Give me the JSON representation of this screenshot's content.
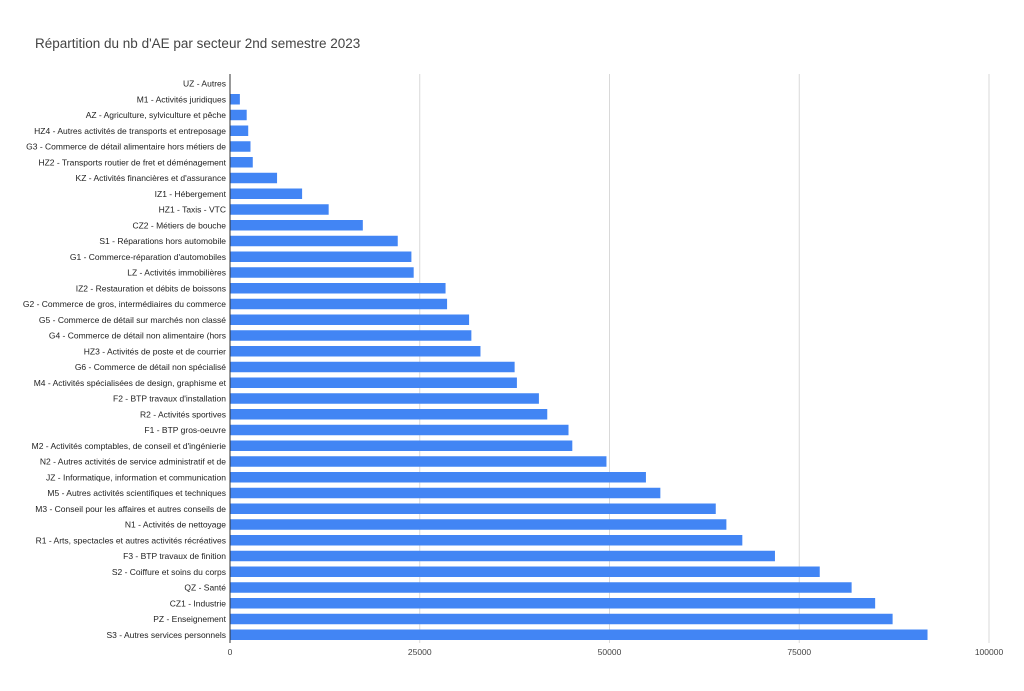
{
  "chart_data": {
    "type": "bar",
    "orientation": "horizontal",
    "title": "Répartition du nb d'AE par secteur 2nd semestre 2023",
    "xlabel": "",
    "ylabel": "",
    "xlim": [
      0,
      100000
    ],
    "x_ticks": [
      0,
      25000,
      50000,
      75000,
      100000
    ],
    "x_tick_labels": [
      "0",
      "25000",
      "50000",
      "75000",
      "100000"
    ],
    "grid": true,
    "legend": "none",
    "bar_color": "#4285f4",
    "categories": [
      "UZ - Autres",
      "M1 - Activités juridiques",
      "AZ - Agriculture, sylviculture et pêche",
      "HZ4 - Autres activités de transports et entreposage",
      "G3 - Commerce de détail alimentaire hors métiers de",
      "HZ2 - Transports routier de fret et déménagement",
      "KZ - Activités financières et d'assurance",
      "IZ1 - Hébergement",
      "HZ1 - Taxis - VTC",
      "CZ2 - Métiers de bouche",
      "S1 - Réparations hors automobile",
      "G1 - Commerce-réparation d'automobiles",
      "LZ - Activités immobilières",
      "IZ2 - Restauration et débits de boissons",
      "G2 - Commerce de gros, intermédiaires du commerce",
      "G5 - Commerce de détail sur marchés non classé",
      "G4 - Commerce de détail non alimentaire (hors",
      "HZ3 - Activités de poste et de courrier",
      "G6 - Commerce de détail non spécialisé",
      "M4 - Activités spécialisées de design, graphisme et",
      "F2 - BTP travaux d'installation",
      "R2 - Activités sportives",
      "F1 - BTP gros-oeuvre",
      "M2 - Activités comptables, de conseil et d'ingénierie",
      "N2 - Autres activités de service administratif et de",
      "JZ - Informatique, information et communication",
      "M5 - Autres activités scientifiques et techniques",
      "M3 - Conseil pour les affaires et autres conseils de",
      "N1 - Activités de nettoyage",
      "R1 - Arts, spectacles et autres activités récréatives",
      "F3 - BTP travaux de finition",
      "S2 - Coiffure et soins du corps",
      "QZ - Santé",
      "CZ1 - Industrie",
      "PZ - Enseignement",
      "S3 - Autres services personnels"
    ],
    "values": [
      0,
      1300,
      2200,
      2400,
      2700,
      3000,
      6200,
      9500,
      13000,
      17500,
      22100,
      23900,
      24200,
      28400,
      28600,
      31500,
      31800,
      33000,
      37500,
      37800,
      40700,
      41800,
      44600,
      45100,
      49600,
      54800,
      56700,
      64000,
      65400,
      67500,
      71800,
      77700,
      81900,
      85000,
      87300,
      91900
    ]
  }
}
